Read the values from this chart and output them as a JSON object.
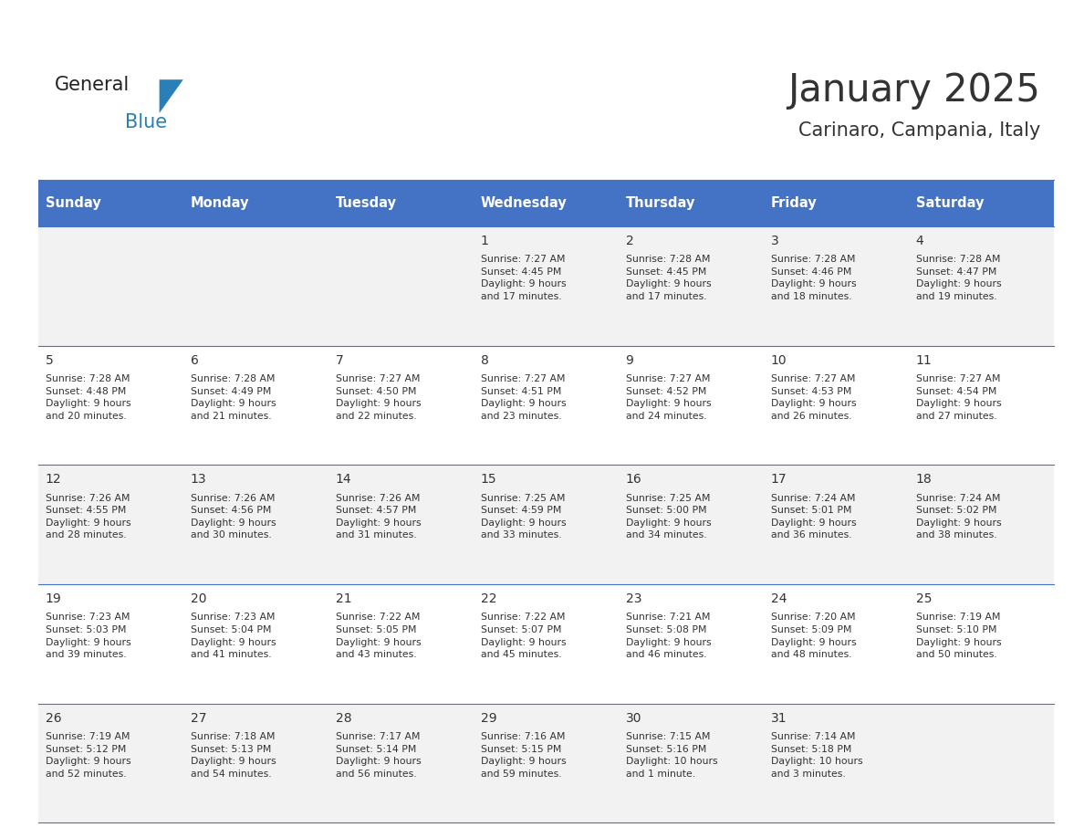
{
  "title": "January 2025",
  "subtitle": "Carinaro, Campania, Italy",
  "days_of_week": [
    "Sunday",
    "Monday",
    "Tuesday",
    "Wednesday",
    "Thursday",
    "Friday",
    "Saturday"
  ],
  "header_bg": "#4472C4",
  "header_text": "#FFFFFF",
  "row_bg_even": "#F2F2F2",
  "row_bg_odd": "#FFFFFF",
  "border_color": "#4472C4",
  "text_color": "#333333",
  "logo_color1": "#222222",
  "logo_color2": "#2980B9",
  "logo_triangle_color": "#2980B9",
  "calendar": [
    [
      null,
      null,
      null,
      {
        "day": 1,
        "sunrise": "7:27 AM",
        "sunset": "4:45 PM",
        "daylight": "9 hours and 17 minutes."
      },
      {
        "day": 2,
        "sunrise": "7:28 AM",
        "sunset": "4:45 PM",
        "daylight": "9 hours and 17 minutes."
      },
      {
        "day": 3,
        "sunrise": "7:28 AM",
        "sunset": "4:46 PM",
        "daylight": "9 hours and 18 minutes."
      },
      {
        "day": 4,
        "sunrise": "7:28 AM",
        "sunset": "4:47 PM",
        "daylight": "9 hours and 19 minutes."
      }
    ],
    [
      {
        "day": 5,
        "sunrise": "7:28 AM",
        "sunset": "4:48 PM",
        "daylight": "9 hours and 20 minutes."
      },
      {
        "day": 6,
        "sunrise": "7:28 AM",
        "sunset": "4:49 PM",
        "daylight": "9 hours and 21 minutes."
      },
      {
        "day": 7,
        "sunrise": "7:27 AM",
        "sunset": "4:50 PM",
        "daylight": "9 hours and 22 minutes."
      },
      {
        "day": 8,
        "sunrise": "7:27 AM",
        "sunset": "4:51 PM",
        "daylight": "9 hours and 23 minutes."
      },
      {
        "day": 9,
        "sunrise": "7:27 AM",
        "sunset": "4:52 PM",
        "daylight": "9 hours and 24 minutes."
      },
      {
        "day": 10,
        "sunrise": "7:27 AM",
        "sunset": "4:53 PM",
        "daylight": "9 hours and 26 minutes."
      },
      {
        "day": 11,
        "sunrise": "7:27 AM",
        "sunset": "4:54 PM",
        "daylight": "9 hours and 27 minutes."
      }
    ],
    [
      {
        "day": 12,
        "sunrise": "7:26 AM",
        "sunset": "4:55 PM",
        "daylight": "9 hours and 28 minutes."
      },
      {
        "day": 13,
        "sunrise": "7:26 AM",
        "sunset": "4:56 PM",
        "daylight": "9 hours and 30 minutes."
      },
      {
        "day": 14,
        "sunrise": "7:26 AM",
        "sunset": "4:57 PM",
        "daylight": "9 hours and 31 minutes."
      },
      {
        "day": 15,
        "sunrise": "7:25 AM",
        "sunset": "4:59 PM",
        "daylight": "9 hours and 33 minutes."
      },
      {
        "day": 16,
        "sunrise": "7:25 AM",
        "sunset": "5:00 PM",
        "daylight": "9 hours and 34 minutes."
      },
      {
        "day": 17,
        "sunrise": "7:24 AM",
        "sunset": "5:01 PM",
        "daylight": "9 hours and 36 minutes."
      },
      {
        "day": 18,
        "sunrise": "7:24 AM",
        "sunset": "5:02 PM",
        "daylight": "9 hours and 38 minutes."
      }
    ],
    [
      {
        "day": 19,
        "sunrise": "7:23 AM",
        "sunset": "5:03 PM",
        "daylight": "9 hours and 39 minutes."
      },
      {
        "day": 20,
        "sunrise": "7:23 AM",
        "sunset": "5:04 PM",
        "daylight": "9 hours and 41 minutes."
      },
      {
        "day": 21,
        "sunrise": "7:22 AM",
        "sunset": "5:05 PM",
        "daylight": "9 hours and 43 minutes."
      },
      {
        "day": 22,
        "sunrise": "7:22 AM",
        "sunset": "5:07 PM",
        "daylight": "9 hours and 45 minutes."
      },
      {
        "day": 23,
        "sunrise": "7:21 AM",
        "sunset": "5:08 PM",
        "daylight": "9 hours and 46 minutes."
      },
      {
        "day": 24,
        "sunrise": "7:20 AM",
        "sunset": "5:09 PM",
        "daylight": "9 hours and 48 minutes."
      },
      {
        "day": 25,
        "sunrise": "7:19 AM",
        "sunset": "5:10 PM",
        "daylight": "9 hours and 50 minutes."
      }
    ],
    [
      {
        "day": 26,
        "sunrise": "7:19 AM",
        "sunset": "5:12 PM",
        "daylight": "9 hours and 52 minutes."
      },
      {
        "day": 27,
        "sunrise": "7:18 AM",
        "sunset": "5:13 PM",
        "daylight": "9 hours and 54 minutes."
      },
      {
        "day": 28,
        "sunrise": "7:17 AM",
        "sunset": "5:14 PM",
        "daylight": "9 hours and 56 minutes."
      },
      {
        "day": 29,
        "sunrise": "7:16 AM",
        "sunset": "5:15 PM",
        "daylight": "9 hours and 59 minutes."
      },
      {
        "day": 30,
        "sunrise": "7:15 AM",
        "sunset": "5:16 PM",
        "daylight": "10 hours and 1 minute."
      },
      {
        "day": 31,
        "sunrise": "7:14 AM",
        "sunset": "5:18 PM",
        "daylight": "10 hours and 3 minutes."
      },
      null
    ]
  ]
}
